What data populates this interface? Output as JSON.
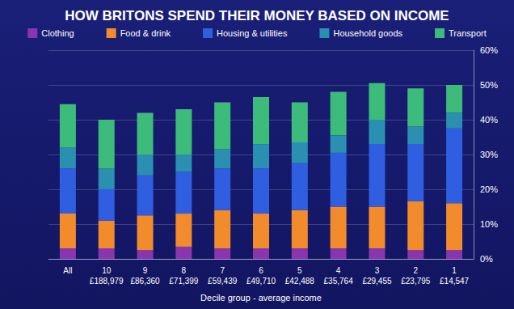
{
  "chart_data": {
    "type": "bar",
    "title": "HOW BRITONS SPEND THEIR MONEY BASED ON INCOME",
    "x_label": "Decile group - average income",
    "categories": [
      "All",
      "10\n£188,979",
      "9\n£86,360",
      "8\n£71,399",
      "7\n£59,439",
      "6\n£49,710",
      "5\n£42,488",
      "4\n£35,764",
      "3\n£29,455",
      "2\n£23,795",
      "1\n£14,547"
    ],
    "series": [
      {
        "name": "Clothing",
        "color": "#8a35b0",
        "values": [
          3,
          3,
          2.5,
          3.5,
          3,
          3,
          3,
          3,
          3,
          2.5,
          2.5
        ]
      },
      {
        "name": "Food & drink",
        "color": "#f28b2c",
        "values": [
          10,
          8,
          10,
          9.5,
          11,
          10,
          11,
          12,
          12,
          14,
          13.5
        ]
      },
      {
        "name": "Housing & utilities",
        "color": "#2f5fe0",
        "values": [
          13,
          9,
          11.5,
          12,
          12,
          13,
          13.5,
          15.5,
          18,
          16.5,
          21.5
        ]
      },
      {
        "name": "Household goods",
        "color": "#2a8fb0",
        "values": [
          6,
          6,
          6,
          5,
          5.5,
          7,
          6,
          5,
          7,
          5,
          4.5
        ]
      },
      {
        "name": "Transport",
        "color": "#3dbb7a",
        "values": [
          12.5,
          14,
          12,
          13,
          13.5,
          13.5,
          11.5,
          12.5,
          10.5,
          11,
          8
        ]
      }
    ],
    "ylim": [
      0,
      60
    ],
    "yticks": [
      {
        "value": 0,
        "label": "0%"
      },
      {
        "value": 10,
        "label": "10%"
      },
      {
        "value": 20,
        "label": "20%"
      },
      {
        "value": 30,
        "label": "30%"
      },
      {
        "value": 40,
        "label": "40%"
      },
      {
        "value": 50,
        "label": "50%"
      },
      {
        "value": 60,
        "label": "60%"
      }
    ],
    "stacked": true,
    "legend": "top",
    "grid": true
  }
}
